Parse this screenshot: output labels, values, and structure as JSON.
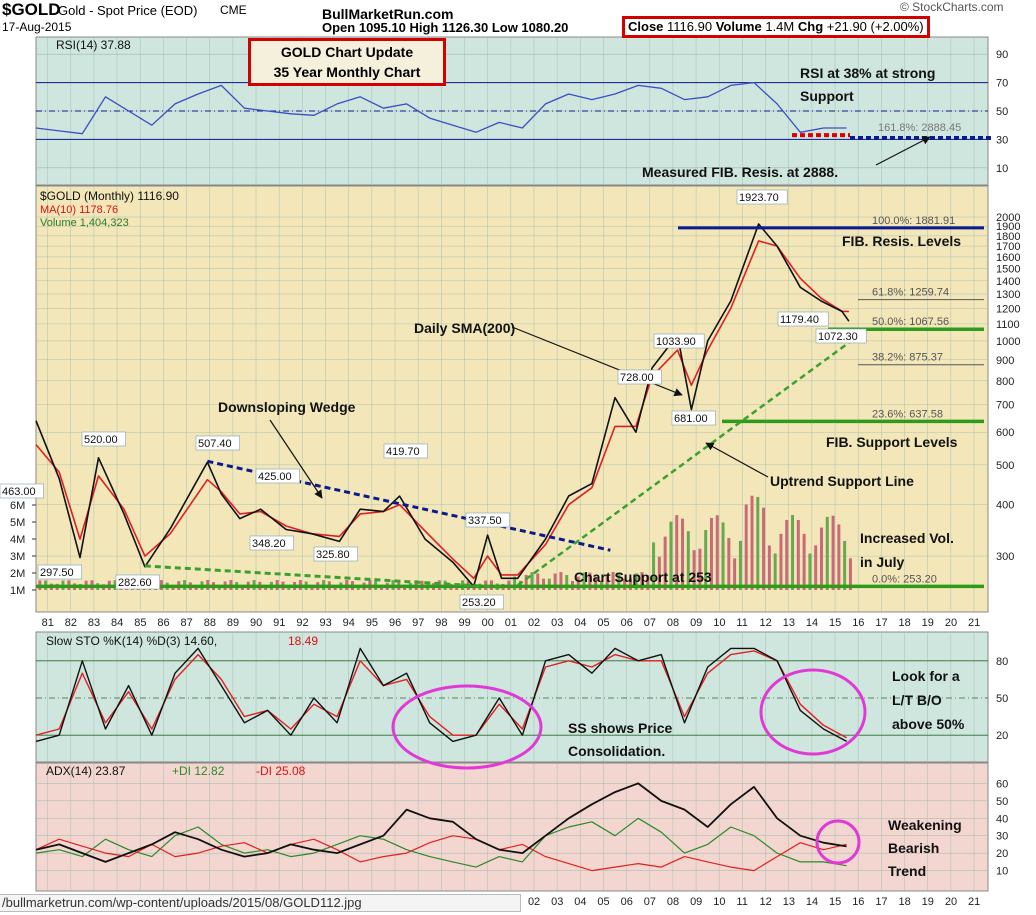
{
  "header": {
    "ticker": "$GOLD",
    "name": "Gold - Spot Price (EOD)",
    "exchange": "CME",
    "date": "17-Aug-2015",
    "site": "BullMarketRun.com",
    "ohl_text": "Open 1095.10  High 1126.30  Low 1080.20",
    "close_label": "Close",
    "close_value": "1116.90",
    "volume_label": "Volume",
    "volume_value": "1.4M",
    "chg_label": "Chg",
    "chg_value": "+21.90 (+2.00%)",
    "watermark": "© StockCharts.com"
  },
  "title_box": {
    "line1": "GOLD Chart Update",
    "line2": "35 Year Monthly Chart"
  },
  "url_text": "/bullmarketrun.com/wp-content/uploads/2015/08/GOLD112.jpg",
  "colors": {
    "panel_bg": "#cfe6de",
    "price_bg": "#f3e7b9",
    "adx_bg": "#f3d6cf",
    "grid": "#9ab9ae",
    "navy": "#0c1a8c",
    "red_box": "#d20000",
    "fib_green": "#2f9a1c",
    "magenta": "#e03ad6",
    "rsi_line": "#3a4fc0",
    "price_line": "#111111",
    "ma_line": "#e02020",
    "volume": "#c86b76",
    "volume_green": "#6aa84f"
  },
  "chart_data": [
    {
      "type": "line",
      "panel": "RSI",
      "title": "RSI(14) 37.88",
      "last_value": 37.88,
      "y_ticks": [
        10,
        30,
        50,
        70,
        90
      ],
      "ylim": [
        0,
        100
      ],
      "reference_lines": [
        30,
        50,
        70
      ],
      "x": [
        1980,
        1981,
        1982,
        1983,
        1984,
        1985,
        1986,
        1987,
        1988,
        1989,
        1990,
        1991,
        1992,
        1993,
        1994,
        1995,
        1996,
        1997,
        1998,
        1999,
        2000,
        2001,
        2002,
        2003,
        2004,
        2005,
        2006,
        2007,
        2008,
        2009,
        2010,
        2011,
        2012,
        2013,
        2014,
        2015
      ],
      "values": [
        38,
        36,
        34,
        60,
        50,
        40,
        55,
        62,
        68,
        52,
        50,
        48,
        47,
        55,
        60,
        52,
        55,
        45,
        40,
        35,
        42,
        38,
        55,
        62,
        58,
        62,
        68,
        66,
        58,
        60,
        68,
        70,
        55,
        35,
        38,
        38
      ],
      "annotations": [
        "RSI at 38% at strong Support",
        "161.8%: 2888.45",
        "Measured FIB. Resis. at 2888."
      ]
    },
    {
      "type": "line",
      "panel": "Price",
      "title": "$GOLD (Monthly) 1116.90",
      "legend": [
        "$GOLD (Monthly) 1116.90",
        "MA(10) 1178.76",
        "Volume 1,404,323"
      ],
      "y_scale": "log",
      "ylim": [
        240,
        2200
      ],
      "y_ticks": [
        300,
        400,
        500,
        600,
        700,
        800,
        900,
        1000,
        1100,
        1200,
        1300,
        1400,
        1500,
        1600,
        1700,
        1800,
        1900,
        2000
      ],
      "x_ticks": [
        "81",
        "82",
        "83",
        "84",
        "85",
        "86",
        "87",
        "88",
        "89",
        "90",
        "91",
        "92",
        "93",
        "94",
        "95",
        "96",
        "97",
        "98",
        "99",
        "00",
        "01",
        "02",
        "03",
        "04",
        "05",
        "06",
        "07",
        "08",
        "09",
        "10",
        "11",
        "12",
        "13",
        "14",
        "15",
        "16",
        "17",
        "18",
        "19",
        "20",
        "21"
      ],
      "x": [
        1980.5,
        1981.5,
        1982.4,
        1983.2,
        1984.3,
        1985.2,
        1986.3,
        1987.9,
        1988.5,
        1989.3,
        1990.2,
        1991.3,
        1992.4,
        1993.6,
        1994.5,
        1995.5,
        1996.2,
        1997.3,
        1998.5,
        1999.4,
        2000.0,
        2000.6,
        2001.3,
        2002.5,
        2003.5,
        2004.5,
        2005.5,
        2006.4,
        2007.1,
        2008.2,
        2008.8,
        2009.5,
        2010.5,
        2011.7,
        2012.5,
        2013.5,
        2014.4,
        2015.3,
        2015.6
      ],
      "series": [
        {
          "name": "$GOLD (Monthly)",
          "values": [
            640,
            463,
            297.5,
            520,
            380,
            282.6,
            350,
            507.4,
            425,
            370,
            390,
            348.2,
            340,
            325.8,
            390,
            385,
            419.7,
            330,
            290,
            253.2,
            337.5,
            265,
            265,
            330,
            420,
            450,
            728,
            600,
            860,
            1033.9,
            681,
            1000,
            1250,
            1923.7,
            1700,
            1350,
            1250,
            1179.4,
            1116.9
          ]
        },
        {
          "name": "MA(10)",
          "values": [
            560,
            480,
            330,
            470,
            390,
            300,
            340,
            460,
            430,
            380,
            385,
            355,
            340,
            335,
            380,
            385,
            400,
            345,
            295,
            265,
            300,
            270,
            270,
            320,
            400,
            440,
            620,
            620,
            820,
            950,
            780,
            950,
            1200,
            1750,
            1700,
            1420,
            1270,
            1180,
            1178.76
          ]
        }
      ],
      "point_labels": [
        {
          "x": 1980.3,
          "label": "463.00"
        },
        {
          "x": 1982.4,
          "label": "297.50"
        },
        {
          "x": 1983.2,
          "label": "520.00"
        },
        {
          "x": 1985.2,
          "label": "282.60"
        },
        {
          "x": 1987.9,
          "label": "507.40"
        },
        {
          "x": 1988.8,
          "label": "425.00"
        },
        {
          "x": 1991.3,
          "label": "348.20"
        },
        {
          "x": 1993.6,
          "label": "325.80"
        },
        {
          "x": 1996.2,
          "label": "419.70"
        },
        {
          "x": 1999.4,
          "label": "253.20"
        },
        {
          "x": 2000.0,
          "label": "337.50"
        },
        {
          "x": 2006.4,
          "label": "728.00"
        },
        {
          "x": 2008.2,
          "label": "1033.90"
        },
        {
          "x": 2008.8,
          "label": "681.00"
        },
        {
          "x": 2011.7,
          "label": "1923.70"
        },
        {
          "x": 2014.4,
          "label": "1179.40"
        },
        {
          "x": 2015.6,
          "label": "1072.30"
        }
      ],
      "fib_levels": [
        {
          "label": "100.0%: 1881.91",
          "value": 1881.91
        },
        {
          "label": "61.8%: 1259.74",
          "value": 1259.74
        },
        {
          "label": "50.0%: 1067.56",
          "value": 1067.56
        },
        {
          "label": "38.2%: 875.37",
          "value": 875.37
        },
        {
          "label": "23.6%: 637.58",
          "value": 637.58
        },
        {
          "label": "0.0%: 253.20",
          "value": 253.2
        }
      ],
      "volume": {
        "y_ticks": [
          "1M",
          "2M",
          "3M",
          "4M",
          "5M",
          "6M"
        ],
        "label": "Volume 1,404,323"
      },
      "annotations": [
        "Daily SMA(200)",
        "Downsloping Wedge",
        "FIB. Resis. Levels",
        "FIB. Support Levels",
        "Uptrend Support Line",
        "Increased Vol. in July",
        "Chart Support at 253"
      ]
    },
    {
      "type": "line",
      "panel": "Slow STO",
      "title": "Slow STO %K(14) %D(3) 14.60, 18.49",
      "title_main": "Slow STO %K(14) %D(3) 14.60,",
      "title_d": "18.49",
      "last_k": 14.6,
      "last_d": 18.49,
      "y_ticks": [
        20,
        50,
        80
      ],
      "ylim": [
        0,
        100
      ],
      "x": [
        1980,
        1981,
        1982,
        1983,
        1984,
        1985,
        1986,
        1987,
        1988,
        1989,
        1990,
        1991,
        1992,
        1993,
        1994,
        1995,
        1996,
        1997,
        1998,
        1999,
        2000,
        2001,
        2002,
        2003,
        2004,
        2005,
        2006,
        2007,
        2008,
        2009,
        2010,
        2011,
        2012,
        2013,
        2014,
        2015
      ],
      "series": [
        {
          "name": "%K",
          "values": [
            15,
            20,
            80,
            25,
            60,
            20,
            70,
            90,
            60,
            30,
            40,
            20,
            50,
            30,
            90,
            60,
            70,
            30,
            15,
            20,
            50,
            20,
            80,
            85,
            70,
            90,
            80,
            85,
            30,
            75,
            90,
            90,
            80,
            40,
            25,
            15
          ]
        },
        {
          "name": "%D",
          "values": [
            20,
            25,
            70,
            30,
            55,
            25,
            65,
            85,
            65,
            35,
            40,
            25,
            45,
            35,
            80,
            60,
            65,
            35,
            20,
            20,
            45,
            25,
            75,
            80,
            75,
            85,
            80,
            80,
            35,
            70,
            85,
            88,
            80,
            45,
            28,
            18
          ]
        }
      ],
      "annotations": [
        "Look for a L/T B/O above 50%",
        "SS shows Price Consolidation."
      ]
    },
    {
      "type": "line",
      "panel": "ADX",
      "title": "ADX(14) 23.87 +DI 12.82 -DI 25.08",
      "title_adx": "ADX(14) 23.87",
      "title_pdi": "+DI 12.82",
      "title_mdi": "-DI 25.08",
      "y_ticks": [
        10,
        20,
        30,
        40,
        50,
        60
      ],
      "ylim": [
        0,
        70
      ],
      "x_ticks": [
        "02",
        "03",
        "04",
        "05",
        "06",
        "07",
        "08",
        "09",
        "10",
        "11",
        "12",
        "13",
        "14",
        "15",
        "16",
        "17",
        "18",
        "19",
        "20",
        "21"
      ],
      "x": [
        1980,
        1981,
        1982,
        1983,
        1984,
        1985,
        1986,
        1987,
        1988,
        1989,
        1990,
        1991,
        1992,
        1993,
        1994,
        1995,
        1996,
        1997,
        1998,
        1999,
        2000,
        2001,
        2002,
        2003,
        2004,
        2005,
        2006,
        2007,
        2008,
        2009,
        2010,
        2011,
        2012,
        2013,
        2014,
        2015
      ],
      "series": [
        {
          "name": "ADX",
          "values": [
            22,
            25,
            20,
            15,
            20,
            25,
            32,
            28,
            22,
            18,
            20,
            25,
            22,
            20,
            25,
            30,
            45,
            40,
            38,
            28,
            22,
            20,
            30,
            40,
            48,
            55,
            60,
            50,
            45,
            35,
            48,
            58,
            40,
            30,
            26,
            23.87
          ]
        },
        {
          "name": "+DI",
          "values": [
            20,
            22,
            18,
            28,
            22,
            18,
            30,
            35,
            25,
            20,
            22,
            18,
            20,
            25,
            30,
            28,
            22,
            18,
            15,
            12,
            18,
            15,
            30,
            35,
            38,
            30,
            40,
            32,
            20,
            25,
            35,
            30,
            20,
            15,
            15,
            12.82
          ]
        },
        {
          "name": "-DI",
          "values": [
            22,
            28,
            24,
            20,
            18,
            25,
            18,
            20,
            24,
            26,
            20,
            25,
            28,
            22,
            15,
            18,
            20,
            26,
            30,
            28,
            22,
            25,
            18,
            14,
            10,
            12,
            14,
            12,
            18,
            15,
            12,
            10,
            18,
            26,
            22,
            25.08
          ]
        }
      ],
      "annotations": [
        "Weakening Bearish Trend"
      ]
    }
  ]
}
